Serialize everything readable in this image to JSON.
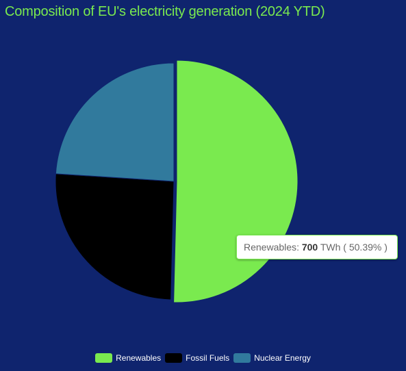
{
  "title": "Composition of EU's electricity generation (2024 YTD)",
  "colors": {
    "background": "#0f246e",
    "title": "#7aea4f",
    "renewables": "#7aea4f",
    "fossil_fuels": "#000000",
    "nuclear": "#317a9d"
  },
  "tooltip": {
    "label": "Renewables",
    "value": "700",
    "unit": "TWh",
    "percent": "50.39%"
  },
  "chart_data": {
    "type": "pie",
    "title": "Composition of EU's electricity generation (2024 YTD)",
    "unit": "TWh",
    "slices": [
      {
        "name": "Renewables",
        "value": 700,
        "percent": 50.39,
        "color": "#7aea4f"
      },
      {
        "name": "Fossil Fuels",
        "value": 356,
        "percent": 25.6,
        "color": "#000000"
      },
      {
        "name": "Nuclear Energy",
        "value": 333,
        "percent": 24.0,
        "color": "#317a9d"
      }
    ],
    "highlighted": "Renewables",
    "legend_position": "bottom"
  }
}
